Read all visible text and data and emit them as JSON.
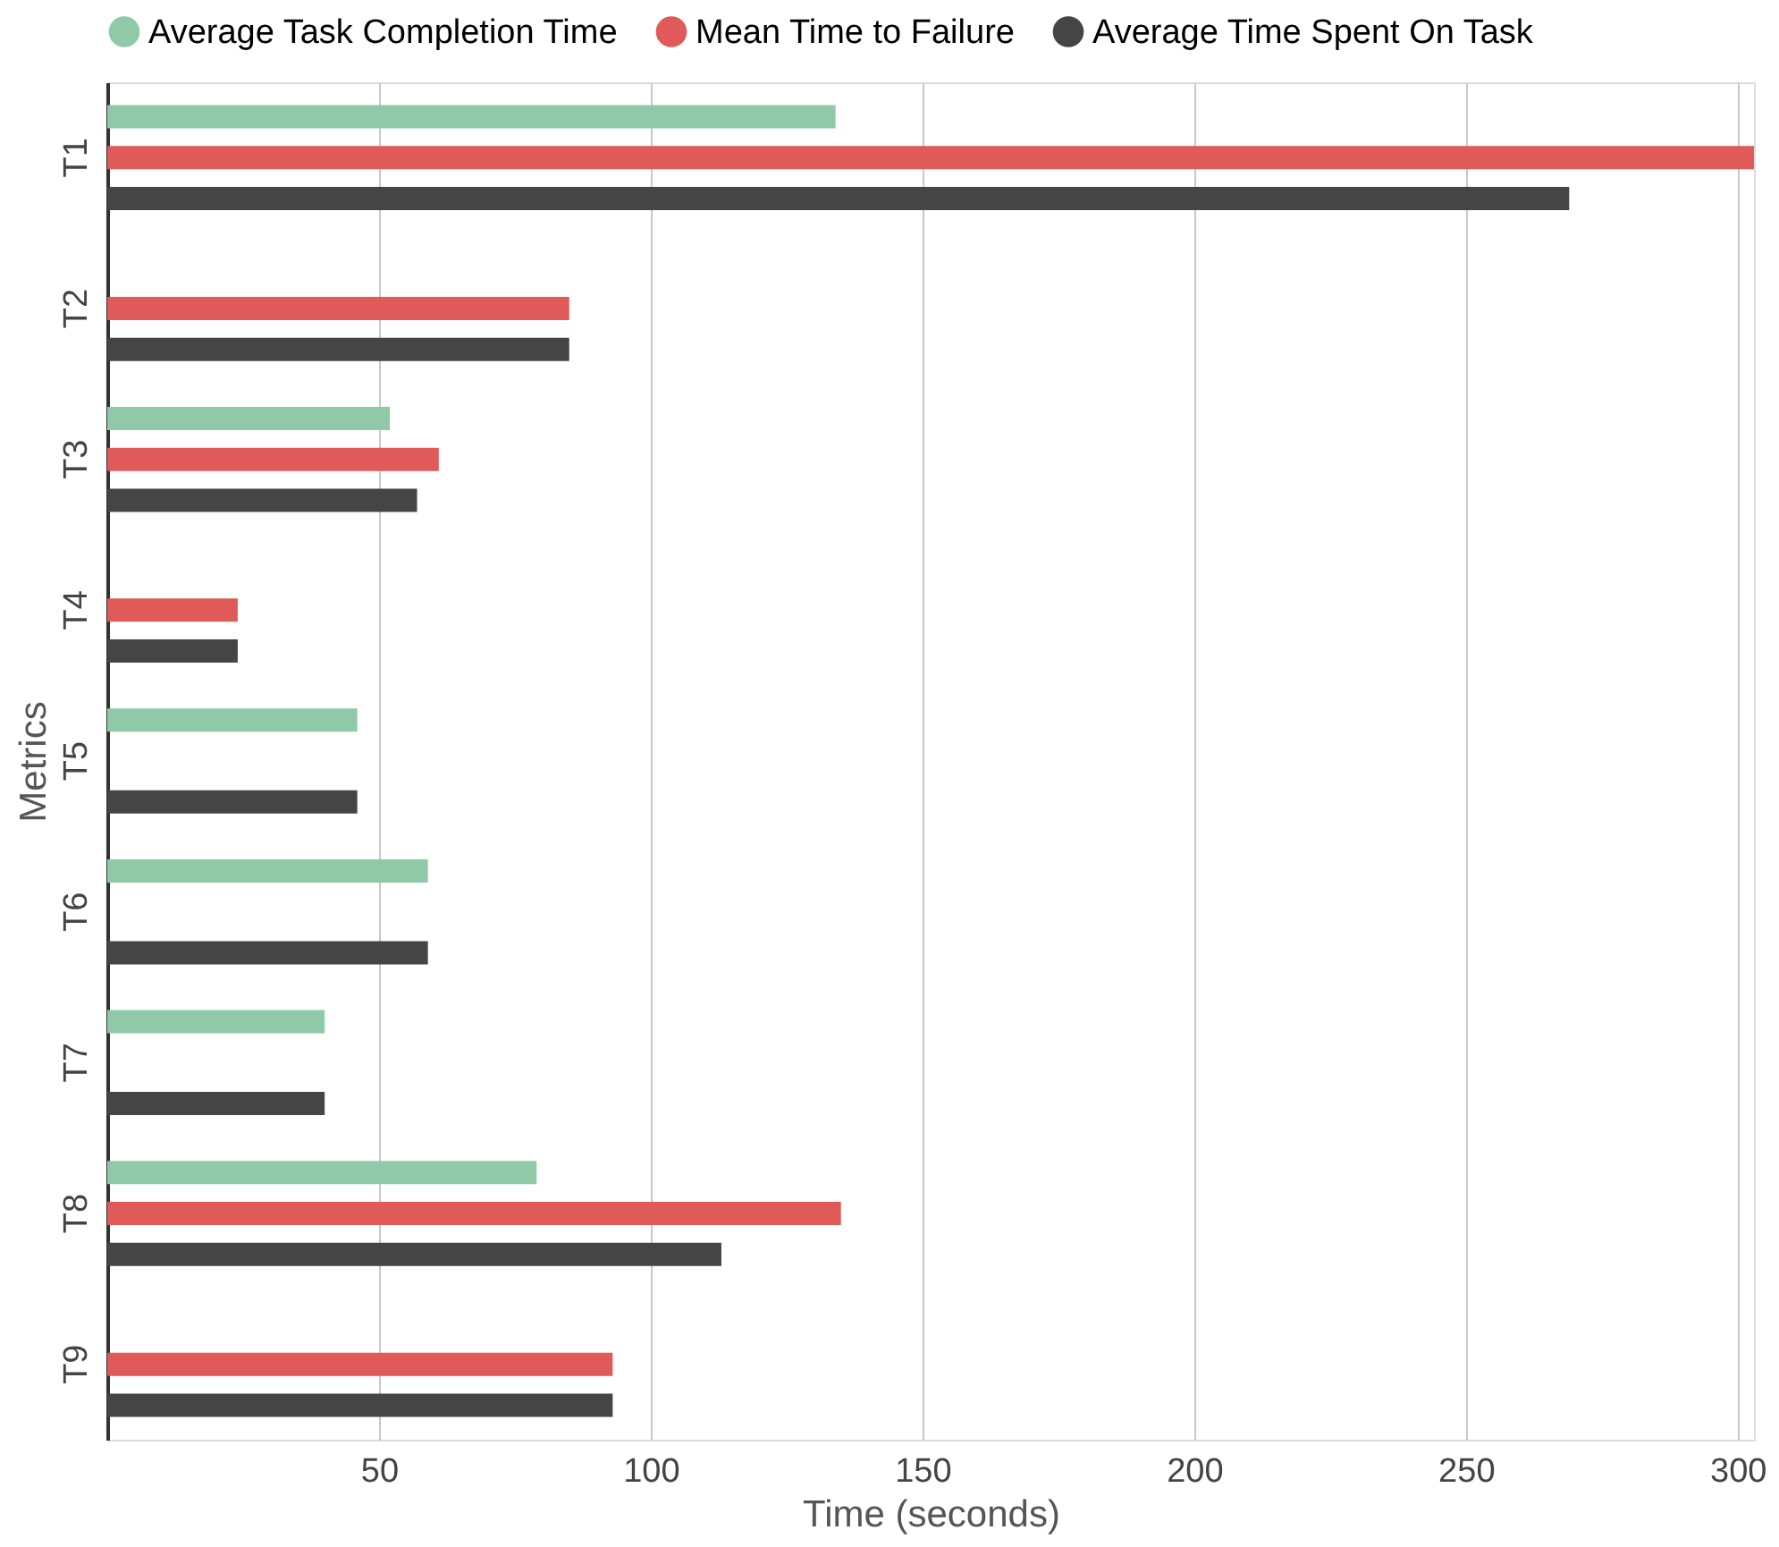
{
  "chart_data": {
    "type": "bar",
    "orientation": "horizontal",
    "xlabel": "Time (seconds)",
    "ylabel": "Metrics",
    "categories": [
      "T1",
      "T2",
      "T3",
      "T4",
      "T5",
      "T6",
      "T7",
      "T8",
      "T9"
    ],
    "series": [
      {
        "name": "Average Task Completion Time",
        "color": "#8fc9a8",
        "values": [
          134,
          null,
          52,
          null,
          46,
          59,
          40,
          79,
          null
        ]
      },
      {
        "name": "Mean Time to Failure",
        "color": "#e05a5a",
        "values": [
          303,
          85,
          61,
          24,
          null,
          null,
          null,
          135,
          93
        ]
      },
      {
        "name": "Average Time Spent On Task",
        "color": "#454545",
        "values": [
          269,
          85,
          57,
          24,
          46,
          59,
          40,
          113,
          93
        ]
      }
    ],
    "xlim": [
      0,
      303
    ],
    "xticks": [
      50,
      100,
      150,
      200,
      250,
      300
    ],
    "grid": "x",
    "legend": "top"
  }
}
